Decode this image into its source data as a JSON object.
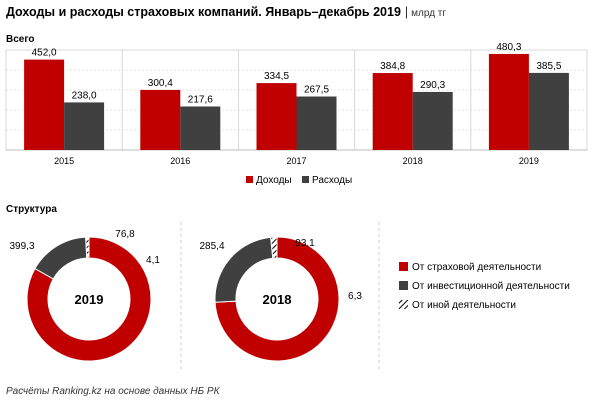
{
  "title": "Доходы и расходы страховых компаний. Январь–декабрь 2019",
  "separator": "|",
  "unit": "млрд тг",
  "section_bar": "Всего",
  "section_pie": "Структура",
  "footer": "Расчёты Ranking.kz на основе данных НБ РК",
  "colors": {
    "income": "#c00000",
    "expense": "#404040",
    "other_hatch": "#000000"
  },
  "chart_data": [
    {
      "type": "bar",
      "categories": [
        "2015",
        "2016",
        "2017",
        "2018",
        "2019"
      ],
      "series": [
        {
          "name": "Доходы",
          "values": [
            452.0,
            300.4,
            334.5,
            384.8,
            480.3
          ],
          "labels": [
            "452,0",
            "300,4",
            "334,5",
            "384,8",
            "480,3"
          ]
        },
        {
          "name": "Расходы",
          "values": [
            238.0,
            217.6,
            267.5,
            290.3,
            385.5
          ],
          "labels": [
            "238,0",
            "217,6",
            "267,5",
            "290,3",
            "385,5"
          ]
        }
      ],
      "ylim": [
        0,
        500
      ],
      "grid": true,
      "legend": "bottom-center"
    },
    {
      "type": "pie",
      "center_label": "2019",
      "slices": [
        {
          "name": "От страховой деятельности",
          "value": 399.3,
          "label": "399,3"
        },
        {
          "name": "От инвестиционной деятельности",
          "value": 76.8,
          "label": "76,8"
        },
        {
          "name": "От иной деятельности",
          "value": 4.1,
          "label": "4,1"
        }
      ]
    },
    {
      "type": "pie",
      "center_label": "2018",
      "slices": [
        {
          "name": "От страховой деятельности",
          "value": 285.4,
          "label": "285,4"
        },
        {
          "name": "От инвестиционной деятельности",
          "value": 93.1,
          "label": "93,1"
        },
        {
          "name": "От иной деятельности",
          "value": 6.3,
          "label": "6,3"
        }
      ]
    }
  ],
  "pie_legend": [
    "От страховой деятельности",
    "От инвестиционной деятельности",
    "От иной деятельности"
  ]
}
